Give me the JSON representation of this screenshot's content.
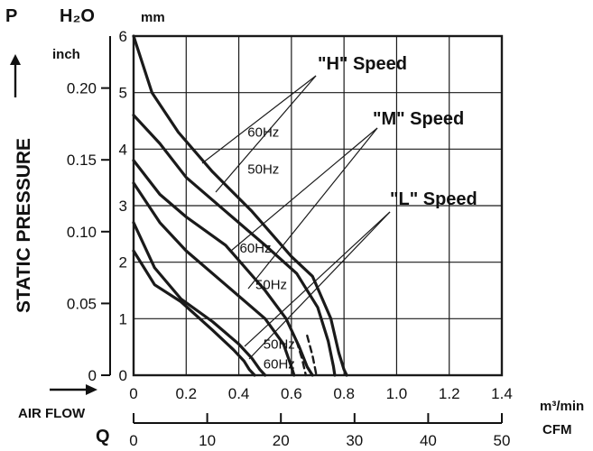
{
  "chart_data": {
    "type": "line",
    "labels": {
      "p_letter": "P",
      "h2o": "H₂O",
      "mm": "mm",
      "inch": "inch",
      "static_pressure": "STATIC PRESSURE",
      "air_flow": "AIR FLOW",
      "q_letter": "Q",
      "m3min": "m³/min",
      "cfm": "CFM",
      "speed_h": "\"H\" Speed",
      "speed_m": "\"M\" Speed",
      "speed_l": "\"L\" Speed"
    },
    "x_axis": {
      "unit": "m³/min",
      "range": [
        0,
        1.4
      ],
      "ticks": [
        "0",
        "0.2",
        "0.4",
        "0.6",
        "0.8",
        "1.0",
        "1.2",
        "1.4"
      ]
    },
    "x2_axis": {
      "unit": "CFM",
      "range": [
        0,
        50
      ],
      "ticks": [
        "0",
        "10",
        "20",
        "30",
        "40",
        "50"
      ]
    },
    "y_axis": {
      "unit": "mmH2O",
      "range": [
        0,
        6
      ],
      "ticks": [
        "0",
        "1",
        "2",
        "3",
        "4",
        "5",
        "6"
      ]
    },
    "y2_axis": {
      "unit": "inch H2O",
      "range": [
        0,
        0.2362
      ],
      "ticks": [
        "0",
        "0.05",
        "0.10",
        "0.15",
        "0.20"
      ]
    },
    "grid": true,
    "series": [
      {
        "speed": "H",
        "hz": "60Hz",
        "dashed": false,
        "x": [
          0.0,
          0.07,
          0.17,
          0.3,
          0.45,
          0.6,
          0.68,
          0.75,
          0.78,
          0.8,
          0.81
        ],
        "y": [
          6.0,
          5.0,
          4.3,
          3.6,
          2.9,
          2.1,
          1.75,
          1.0,
          0.4,
          0.1,
          0.0
        ]
      },
      {
        "speed": "H",
        "hz": "50Hz",
        "dashed": false,
        "x": [
          0.0,
          0.1,
          0.2,
          0.35,
          0.5,
          0.62,
          0.7,
          0.74,
          0.76,
          0.765
        ],
        "y": [
          4.6,
          4.1,
          3.5,
          2.9,
          2.3,
          1.8,
          1.2,
          0.6,
          0.15,
          0.0
        ]
      },
      {
        "speed": "M",
        "hz": "60Hz",
        "dashed": false,
        "x": [
          0.0,
          0.1,
          0.2,
          0.35,
          0.5,
          0.58,
          0.63,
          0.66,
          0.68
        ],
        "y": [
          3.8,
          3.2,
          2.8,
          2.3,
          1.5,
          1.0,
          0.5,
          0.15,
          0.0
        ]
      },
      {
        "speed": "M",
        "hz": "50Hz",
        "dashed": false,
        "x": [
          0.0,
          0.1,
          0.2,
          0.35,
          0.5,
          0.57,
          0.6,
          0.61
        ],
        "y": [
          3.4,
          2.7,
          2.2,
          1.6,
          1.0,
          0.55,
          0.15,
          0.0
        ]
      },
      {
        "speed": "L",
        "hz": "60Hz",
        "dashed": false,
        "x": [
          0.0,
          0.08,
          0.18,
          0.3,
          0.4,
          0.45,
          0.48,
          0.5
        ],
        "y": [
          2.7,
          1.9,
          1.35,
          0.95,
          0.55,
          0.3,
          0.1,
          0.0
        ]
      },
      {
        "speed": "L",
        "hz": "50Hz",
        "dashed": false,
        "x": [
          0.0,
          0.08,
          0.18,
          0.3,
          0.38,
          0.42,
          0.44,
          0.46
        ],
        "y": [
          2.2,
          1.6,
          1.3,
          0.8,
          0.45,
          0.25,
          0.1,
          0.0
        ]
      },
      {
        "speed": "M",
        "hz": "60Hz",
        "dashed": true,
        "x": [
          0.62,
          0.64,
          0.65,
          0.655
        ],
        "y": [
          0.6,
          0.3,
          0.1,
          0.0
        ]
      },
      {
        "speed": "M",
        "hz": "60Hz",
        "dashed": true,
        "x": [
          0.66,
          0.68,
          0.69,
          0.695
        ],
        "y": [
          0.7,
          0.35,
          0.12,
          0.0
        ]
      }
    ],
    "annotations": [
      {
        "text": "60Hz",
        "x": 0.55,
        "y": 4.3
      },
      {
        "text": "50Hz",
        "x": 0.55,
        "y": 3.65
      },
      {
        "text": "60Hz",
        "x": 0.52,
        "y": 2.25
      },
      {
        "text": "50Hz",
        "x": 0.58,
        "y": 1.6
      },
      {
        "text": "50Hz",
        "x": 0.61,
        "y": 0.55
      },
      {
        "text": "60Hz",
        "x": 0.61,
        "y": 0.2
      }
    ]
  }
}
